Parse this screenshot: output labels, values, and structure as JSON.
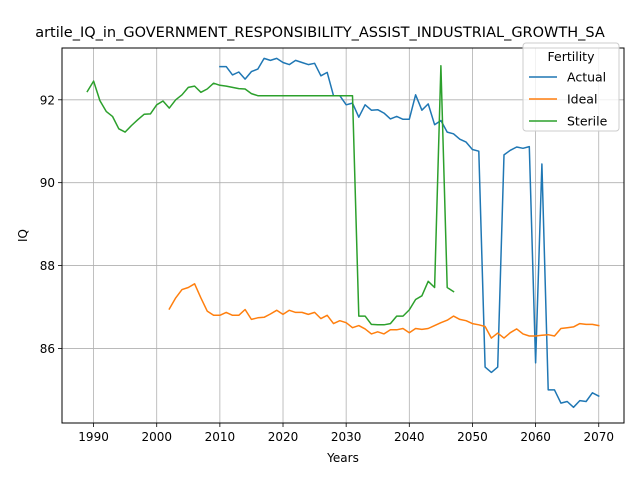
{
  "chart_data": {
    "type": "line",
    "title": "artile_IQ_in_GOVERNMENT_RESPONSIBILITY_ASSIST_INDUSTRIAL_GROWTH_SA",
    "xlabel": "Years",
    "ylabel": "IQ",
    "xlim": [
      1985,
      2074
    ],
    "ylim": [
      84.2,
      93.25
    ],
    "xticks": [
      1990,
      2000,
      2010,
      2020,
      2030,
      2040,
      2050,
      2060,
      2070
    ],
    "yticks": [
      86,
      88,
      90,
      92
    ],
    "grid": true,
    "legend": {
      "title": "Fertility",
      "position": "top-right"
    },
    "series": [
      {
        "name": "Actual",
        "color": "#1f77b4",
        "x": [
          2010,
          2011,
          2012,
          2013,
          2014,
          2015,
          2016,
          2017,
          2018,
          2019,
          2020,
          2021,
          2022,
          2023,
          2024,
          2025,
          2026,
          2027,
          2028,
          2029,
          2030,
          2031,
          2032,
          2033,
          2034,
          2035,
          2036,
          2037,
          2038,
          2039,
          2040,
          2041,
          2042,
          2043,
          2044,
          2045,
          2046,
          2047,
          2048,
          2049,
          2050,
          2051,
          2052,
          2053,
          2054,
          2055,
          2056,
          2057,
          2058,
          2059,
          2060,
          2061,
          2062,
          2063,
          2064,
          2065,
          2066,
          2067,
          2068,
          2069,
          2070
        ],
        "y": [
          92.8,
          92.8,
          92.6,
          92.67,
          92.5,
          92.68,
          92.74,
          93.0,
          92.95,
          93.0,
          92.9,
          92.85,
          92.95,
          92.9,
          92.85,
          92.88,
          92.58,
          92.66,
          92.1,
          92.1,
          91.88,
          91.92,
          91.58,
          91.88,
          91.75,
          91.76,
          91.68,
          91.54,
          91.6,
          91.53,
          91.53,
          92.12,
          91.75,
          91.9,
          91.4,
          91.5,
          91.22,
          91.18,
          91.05,
          90.98,
          90.8,
          90.76,
          85.55,
          85.42,
          85.55,
          90.67,
          90.78,
          90.86,
          90.83,
          90.87,
          85.65,
          90.45,
          85.0,
          85.0,
          84.68,
          84.72,
          84.58,
          84.74,
          84.72,
          84.93,
          84.85
        ]
      },
      {
        "name": "Ideal",
        "color": "#ff7f0e",
        "x": [
          2002,
          2003,
          2004,
          2005,
          2006,
          2007,
          2008,
          2009,
          2010,
          2011,
          2012,
          2013,
          2014,
          2015,
          2016,
          2017,
          2018,
          2019,
          2020,
          2021,
          2022,
          2023,
          2024,
          2025,
          2026,
          2027,
          2028,
          2029,
          2030,
          2031,
          2032,
          2033,
          2034,
          2035,
          2036,
          2037,
          2038,
          2039,
          2040,
          2041,
          2042,
          2043,
          2044,
          2045,
          2046,
          2047,
          2048,
          2049,
          2050,
          2051,
          2052,
          2053,
          2054,
          2055,
          2056,
          2057,
          2058,
          2059,
          2060,
          2061,
          2062,
          2063,
          2064,
          2065,
          2066,
          2067,
          2068,
          2069,
          2070
        ],
        "y": [
          86.95,
          87.22,
          87.42,
          87.47,
          87.56,
          87.22,
          86.9,
          86.8,
          86.8,
          86.87,
          86.8,
          86.8,
          86.94,
          86.7,
          86.74,
          86.75,
          86.83,
          86.92,
          86.82,
          86.92,
          86.87,
          86.87,
          86.82,
          86.87,
          86.72,
          86.8,
          86.6,
          86.67,
          86.62,
          86.5,
          86.55,
          86.47,
          86.35,
          86.4,
          86.35,
          86.45,
          86.45,
          86.48,
          86.38,
          86.48,
          86.46,
          86.48,
          86.55,
          86.62,
          86.68,
          86.78,
          86.7,
          86.67,
          86.6,
          86.57,
          86.53,
          86.25,
          86.37,
          86.25,
          86.38,
          86.47,
          86.35,
          86.3,
          86.3,
          86.32,
          86.33,
          86.3,
          86.48,
          86.5,
          86.52,
          86.6,
          86.58,
          86.58,
          86.55
        ]
      },
      {
        "name": "Sterile",
        "color": "#2ca02c",
        "x": [
          1989,
          1990,
          1991,
          1992,
          1993,
          1994,
          1995,
          1996,
          1997,
          1998,
          1999,
          2000,
          2001,
          2002,
          2003,
          2004,
          2005,
          2006,
          2007,
          2008,
          2009,
          2010,
          2011,
          2012,
          2013,
          2014,
          2015,
          2016,
          2017,
          2018,
          2019,
          2020,
          2021,
          2022,
          2023,
          2024,
          2025,
          2026,
          2027,
          2028,
          2029,
          2030,
          2031,
          2032,
          2033,
          2034,
          2035,
          2036,
          2037,
          2038,
          2039,
          2040,
          2041,
          2042,
          2043,
          2044,
          2045,
          2046,
          2047
        ],
        "y": [
          92.2,
          92.45,
          91.98,
          91.72,
          91.6,
          91.3,
          91.22,
          91.38,
          91.52,
          91.65,
          91.66,
          91.88,
          91.97,
          91.8,
          92.0,
          92.12,
          92.3,
          92.33,
          92.18,
          92.26,
          92.4,
          92.35,
          92.33,
          92.3,
          92.27,
          92.26,
          92.15,
          92.1,
          92.1,
          92.1,
          92.1,
          92.1,
          92.1,
          92.1,
          92.1,
          92.1,
          92.1,
          92.1,
          92.1,
          92.1,
          92.1,
          92.1,
          92.1,
          86.78,
          86.78,
          86.58,
          86.57,
          86.57,
          86.6,
          86.78,
          86.78,
          86.93,
          87.18,
          87.27,
          87.62,
          87.47,
          92.82,
          87.47,
          87.37
        ]
      }
    ]
  }
}
